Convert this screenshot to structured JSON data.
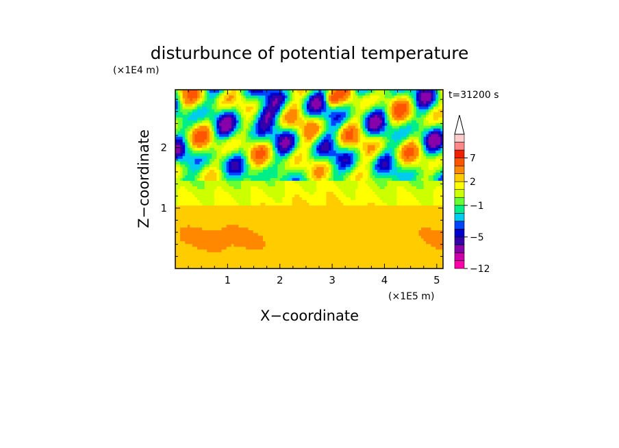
{
  "chart_data": {
    "type": "heatmap",
    "title": "disturbunce of potential temperature",
    "xlabel": "X−coordinate",
    "ylabel": "Z−coordinate",
    "x_unit": "(×1E5 m)",
    "y_unit": "(×1E4 m)",
    "time_label": "t=31200 s",
    "xlim": [
      0,
      5.12
    ],
    "ylim": [
      0,
      2.96
    ],
    "x_ticks": [
      {
        "value": 1,
        "label": "1"
      },
      {
        "value": 2,
        "label": "2"
      },
      {
        "value": 3,
        "label": "3"
      },
      {
        "value": 4,
        "label": "4"
      },
      {
        "value": 5,
        "label": "5"
      }
    ],
    "y_ticks": [
      {
        "value": 1,
        "label": "1"
      },
      {
        "value": 2,
        "label": "2"
      }
    ],
    "colorbar": {
      "levels": [
        -12,
        -10,
        -8,
        -6,
        -5,
        -4,
        -3,
        -2,
        -1,
        0,
        1,
        2,
        3,
        5,
        7,
        9,
        11
      ],
      "colors": [
        "#ff00aa",
        "#cc00aa",
        "#8800aa",
        "#3300aa",
        "#0000cc",
        "#0044ff",
        "#00ccee",
        "#00ee88",
        "#66ff33",
        "#ccff00",
        "#ffff00",
        "#ffcc00",
        "#ff8800",
        "#ff5500",
        "#ee2200",
        "#ff8888",
        "#ffcccc"
      ],
      "extend": "max",
      "tick_labels": [
        {
          "value": 7,
          "label": "7"
        },
        {
          "value": 2,
          "label": "2"
        },
        {
          "value": -1,
          "label": "−1"
        },
        {
          "value": -5,
          "label": "−5"
        },
        {
          "value": -12,
          "label": "−12"
        }
      ]
    }
  }
}
